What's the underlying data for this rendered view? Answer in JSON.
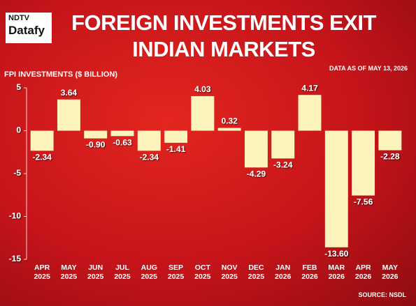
{
  "chart_data": {
    "type": "bar",
    "brand": "NDTV",
    "brand_sub": "Datafy",
    "title": "FOREIGN INVESTMENTS EXIT INDIAN MARKETS",
    "subtitle": "DATA AS OF MAY 13, 2026",
    "y_label": "FPI INVESTMENTS ($ BILLION)",
    "source": "SOURCE: NSDL",
    "categories": [
      "APR 2025",
      "MAY 2025",
      "JUN 2025",
      "JUL 2025",
      "AUG 2025",
      "SEP 2025",
      "OCT 2025",
      "NOV 2025",
      "DEC 2025",
      "JAN 2026",
      "FEB 2026",
      "MAR 2026",
      "APR 2026",
      "MAY 2026"
    ],
    "values": [
      -2.34,
      3.64,
      -0.9,
      -0.63,
      -2.34,
      -1.41,
      4.03,
      0.32,
      -4.29,
      -3.24,
      4.17,
      -13.6,
      -7.56,
      -2.28
    ],
    "value_labels": [
      "-2.34",
      "3.64",
      "-0.90",
      "-0.63",
      "-2.34",
      "-1.41",
      "4.03",
      "0.32",
      "-4.29",
      "-3.24",
      "4.17",
      "-13.60",
      "-7.56",
      "-2.28"
    ],
    "color": "#fcf3bd",
    "ylim": [
      -15,
      5
    ],
    "yticks": [
      5,
      0,
      -5,
      -10,
      -15
    ],
    "grid": false
  }
}
